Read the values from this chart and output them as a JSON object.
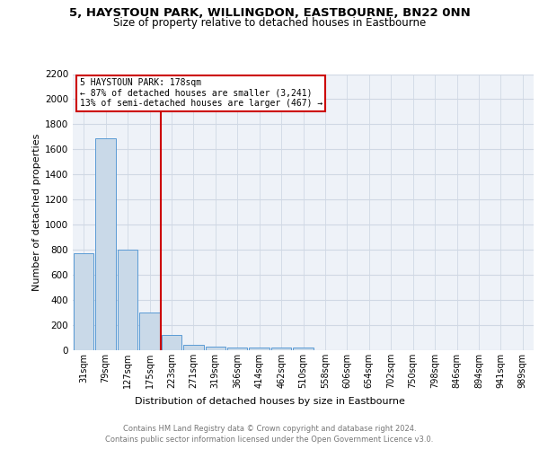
{
  "title": "5, HAYSTOUN PARK, WILLINGDON, EASTBOURNE, BN22 0NN",
  "subtitle": "Size of property relative to detached houses in Eastbourne",
  "xlabel": "Distribution of detached houses by size in Eastbourne",
  "ylabel": "Number of detached properties",
  "footer_line1": "Contains HM Land Registry data © Crown copyright and database right 2024.",
  "footer_line2": "Contains public sector information licensed under the Open Government Licence v3.0.",
  "annotation_line1": "5 HAYSTOUN PARK: 178sqm",
  "annotation_line2": "← 87% of detached houses are smaller (3,241)",
  "annotation_line3": "13% of semi-detached houses are larger (467) →",
  "bar_labels": [
    "31sqm",
    "79sqm",
    "127sqm",
    "175sqm",
    "223sqm",
    "271sqm",
    "319sqm",
    "366sqm",
    "414sqm",
    "462sqm",
    "510sqm",
    "558sqm",
    "606sqm",
    "654sqm",
    "702sqm",
    "750sqm",
    "798sqm",
    "846sqm",
    "894sqm",
    "941sqm",
    "989sqm"
  ],
  "bar_values": [
    770,
    1690,
    800,
    300,
    120,
    45,
    30,
    25,
    20,
    20,
    20,
    0,
    0,
    0,
    0,
    0,
    0,
    0,
    0,
    0,
    0
  ],
  "bar_color": "#c9d9e8",
  "bar_edge_color": "#5b9bd5",
  "vline_color": "#cc0000",
  "vline_x": 3.5,
  "annotation_box_color": "#cc0000",
  "grid_color": "#d0d8e4",
  "background_color": "#eef2f8",
  "ylim": [
    0,
    2200
  ],
  "yticks": [
    0,
    200,
    400,
    600,
    800,
    1000,
    1200,
    1400,
    1600,
    1800,
    2000,
    2200
  ],
  "title_fontsize": 9.5,
  "subtitle_fontsize": 8.5,
  "ylabel_fontsize": 8,
  "xlabel_fontsize": 8,
  "tick_fontsize": 7,
  "footer_fontsize": 6,
  "annotation_fontsize": 7
}
